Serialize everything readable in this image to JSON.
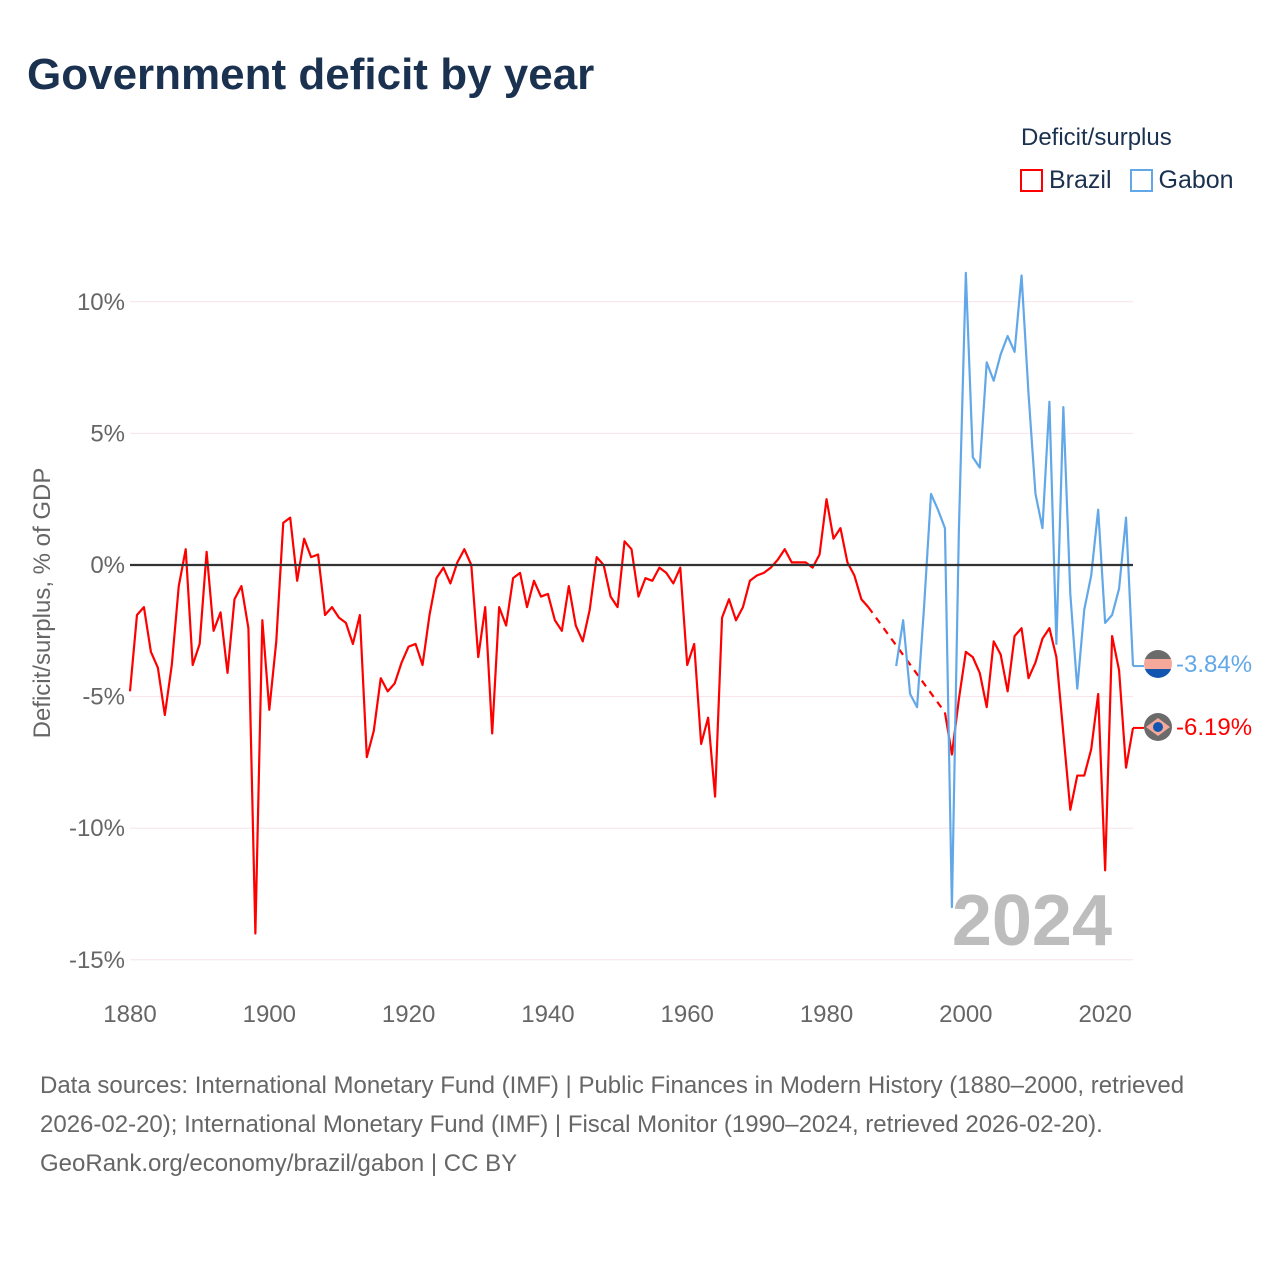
{
  "title": "Government deficit by year",
  "legend": {
    "title": "Deficit/surplus",
    "items": [
      {
        "name": "Brazil",
        "color": "#ff0000"
      },
      {
        "name": "Gabon",
        "color": "#62a8e8"
      }
    ]
  },
  "current_year": "2024",
  "end_labels": {
    "gabon": "-3.84%",
    "brazil": "-6.19%"
  },
  "footer": {
    "sources": "Data sources: International Monetary Fund (IMF) | Public Finances in Modern History (1880–2000, retrieved 2026-02-20); International Monetary Fund (IMF) | Fiscal Monitor (1990–2024, retrieved 2026-02-20).",
    "credit": "GeoRank.org/economy/brazil/gabon | CC BY"
  },
  "chart_data": {
    "type": "line",
    "title": "Government deficit by year",
    "xlabel": "",
    "ylabel": "Deficit/surplus, % of GDP",
    "xlim": [
      1880,
      2024
    ],
    "ylim": [
      -15,
      11
    ],
    "xticks": [
      1880,
      1900,
      1920,
      1940,
      1960,
      1980,
      2000,
      2020
    ],
    "xtick_labels": [
      "1880",
      "1900",
      "1920",
      "1940",
      "1960",
      "1980",
      "2000",
      "2020"
    ],
    "yticks": [
      10,
      5,
      0,
      -5,
      -10,
      -15
    ],
    "ytick_labels": [
      "10%",
      "5%",
      "0%",
      "-5%",
      "-10%",
      "-15%"
    ],
    "grid": true,
    "legend_position": "top-right",
    "series": [
      {
        "name": "Brazil",
        "color": "#ff0000",
        "start_year": 1880,
        "values": [
          -4.8,
          -1.9,
          -1.6,
          -3.3,
          -3.9,
          -5.7,
          -3.8,
          -0.8,
          0.6,
          -3.8,
          -3.0,
          0.5,
          -2.5,
          -1.8,
          -4.1,
          -1.3,
          -0.8,
          -2.4,
          -14.0,
          -2.1,
          -5.5,
          -2.9,
          1.6,
          1.8,
          -0.6,
          1.0,
          0.3,
          0.4,
          -1.9,
          -1.6,
          -2.0,
          -2.2,
          -3.0,
          -1.9,
          -7.3,
          -6.3,
          -4.3,
          -4.8,
          -4.5,
          -3.7,
          -3.1,
          -3.0,
          -3.8,
          -1.9,
          -0.5,
          -0.1,
          -0.7,
          0.1,
          0.6,
          0.0,
          -3.5,
          -1.6,
          -6.4,
          -1.6,
          -2.3,
          -0.5,
          -0.3,
          -1.6,
          -0.6,
          -1.2,
          -1.1,
          -2.1,
          -2.5,
          -0.8,
          -2.3,
          -2.9,
          -1.7,
          0.3,
          0.0,
          -1.2,
          -1.6,
          0.9,
          0.6,
          -1.2,
          -0.5,
          -0.6,
          -0.1,
          -0.3,
          -0.7,
          -0.1,
          -3.8,
          -3.0,
          -6.8,
          -5.8,
          -8.8,
          -2.0,
          -1.3,
          -2.1,
          -1.6,
          -0.6,
          -0.4,
          -0.3,
          -0.1,
          0.2,
          0.6,
          0.1,
          0.1,
          0.1,
          -0.1,
          0.4,
          2.5,
          1.0,
          1.4,
          0.1,
          -0.4,
          -1.3,
          -1.6,
          null,
          null,
          null,
          null,
          null,
          null,
          null,
          null,
          null,
          null,
          -5.6,
          -7.2,
          -5.1,
          -3.3,
          -3.5,
          -4.1,
          -5.4,
          -2.9,
          -3.4,
          -4.8,
          -2.7,
          -2.4,
          -4.3,
          -3.7,
          -2.8,
          -2.4,
          -3.5,
          -6.4,
          -9.3,
          -8.0,
          -8.0,
          -7.0,
          -4.9,
          -11.6,
          -2.7,
          -4.0,
          -7.7,
          -6.19
        ]
      },
      {
        "name": "Gabon",
        "color": "#62a8e8",
        "start_year": 1990,
        "values": [
          -3.84,
          -2.1,
          -4.9,
          -5.4,
          -1.6,
          2.7,
          2.1,
          1.4,
          -13.0,
          1.3,
          11.1,
          4.1,
          3.7,
          7.7,
          7.0,
          8.0,
          8.7,
          8.1,
          11.0,
          6.5,
          2.7,
          1.4,
          6.2,
          -3.0,
          6.0,
          -1.1,
          -4.7,
          -1.7,
          -0.4,
          2.1,
          -2.2,
          -1.9,
          -0.9,
          1.8,
          -3.84
        ]
      }
    ]
  }
}
